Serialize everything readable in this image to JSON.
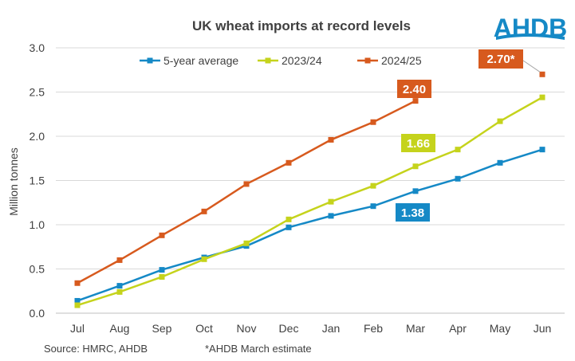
{
  "logo_text": "AHDB",
  "chart_data": {
    "type": "line",
    "title": "UK wheat imports at record levels",
    "ylabel": "Million tonnes",
    "xlabel": "",
    "ylim": [
      0,
      3.0
    ],
    "yticks": [
      "0.0",
      "0.5",
      "1.0",
      "1.5",
      "2.0",
      "2.5",
      "3.0"
    ],
    "grid": true,
    "legend": "top",
    "categories": [
      "Jul",
      "Aug",
      "Sep",
      "Oct",
      "Nov",
      "Dec",
      "Jan",
      "Feb",
      "Mar",
      "Apr",
      "May",
      "Jun"
    ],
    "series": [
      {
        "name": "5-year average",
        "color": "#1589c6",
        "values": [
          0.14,
          0.31,
          0.49,
          0.63,
          0.76,
          0.97,
          1.1,
          1.21,
          1.38,
          1.52,
          1.7,
          1.85
        ]
      },
      {
        "name": "2023/24",
        "color": "#c5d31c",
        "values": [
          0.09,
          0.24,
          0.41,
          0.61,
          0.79,
          1.06,
          1.26,
          1.44,
          1.66,
          1.85,
          2.17,
          2.44
        ]
      },
      {
        "name": "2024/25",
        "color": "#d75a1e",
        "values": [
          0.34,
          0.6,
          0.88,
          1.15,
          1.46,
          1.7,
          1.96,
          2.16,
          2.4,
          null,
          null,
          null
        ]
      }
    ],
    "estimate": {
      "name": "2024/25",
      "category": "Jun",
      "value": 2.7,
      "label": "2.70*"
    },
    "data_labels": [
      {
        "series": "2024/25",
        "category": "Mar",
        "label": "2.40"
      },
      {
        "series": "2023/24",
        "category": "Mar",
        "label": "1.66"
      },
      {
        "series": "5-year average",
        "category": "Mar",
        "label": "1.38"
      }
    ],
    "source": "Source: HMRC, AHDB",
    "footnote": "*AHDB March estimate"
  }
}
